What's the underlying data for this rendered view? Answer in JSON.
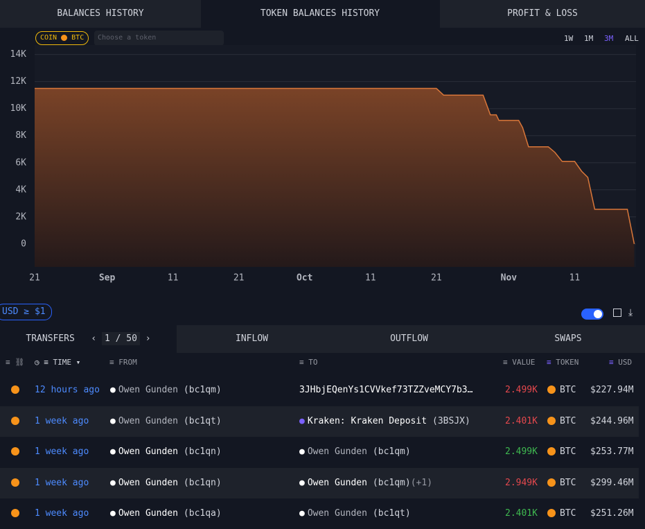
{
  "tabs": [
    "BALANCES HISTORY",
    "TOKEN BALANCES HISTORY",
    "PROFIT & LOSS"
  ],
  "token_filter": {
    "coin": "COIN",
    "token": "BTC",
    "placeholder": "Choose a token"
  },
  "ranges": [
    "1W",
    "1M",
    "3M",
    "ALL"
  ],
  "chart_data": {
    "type": "area",
    "color": "#d9773a",
    "grid": true,
    "x": [
      0,
      61,
      62.1,
      68.1,
      69.2,
      70.1,
      70.5,
      73.5,
      74.1,
      75,
      78,
      79,
      80.1,
      82,
      83.05,
      84,
      85.05,
      90,
      91.05
    ],
    "values": [
      11500,
      11500,
      11000,
      11000,
      9540,
      9540,
      9130,
      9130,
      8600,
      7180,
      7180,
      6770,
      6100,
      6100,
      5380,
      4920,
      2560,
      2560,
      0
    ],
    "xlim": [
      0,
      91
    ],
    "xticks": [
      {
        "value": 0,
        "label": "21"
      },
      {
        "value": 11,
        "label": "Sep"
      },
      {
        "value": 21,
        "label": "11"
      },
      {
        "value": 31,
        "label": "21"
      },
      {
        "value": 41,
        "label": "Oct"
      },
      {
        "value": 51,
        "label": "11"
      },
      {
        "value": 61,
        "label": "21"
      },
      {
        "value": 72,
        "label": "Nov"
      },
      {
        "value": 82,
        "label": "11"
      }
    ],
    "ylim": [
      -1700,
      14700
    ],
    "yticks": [
      0,
      {
        "value": 2000,
        "label": "2K"
      },
      {
        "value": 4000,
        "label": "4K"
      },
      {
        "value": 6000,
        "label": "6K"
      },
      {
        "value": 8000,
        "label": "8K"
      },
      {
        "value": 10000,
        "label": "10K"
      },
      {
        "value": 12000,
        "label": "12K"
      },
      {
        "value": 14000,
        "label": "14K"
      }
    ]
  },
  "filter_chip": "USD ≥ $1",
  "subtabs": {
    "transfers": "TRANSFERS",
    "page": "1 / 50",
    "inflow": "INFLOW",
    "outflow": "OUTFLOW",
    "swaps": "SWAPS"
  },
  "table": {
    "headers": [
      "TIME",
      "FROM",
      "TO",
      "VALUE",
      "TOKEN",
      "USD"
    ],
    "rows": [
      {
        "time": "12 hours ago",
        "from_name": "Owen Gunden",
        "from_addr": "(bc1qm)",
        "to_name": "3JHbjEQenYs1CVVkef73TZZveMCY7b3…",
        "to_addr": "",
        "extra": "",
        "value": "2.499K",
        "value_color": "#e5484d",
        "token": "BTC",
        "usd": "$227.94M"
      },
      {
        "time": "1 week ago",
        "from_name": "Owen Gunden",
        "from_addr": "(bc1qt)",
        "to_name": "Kraken: Kraken Deposit",
        "to_addr": "(3BSJX)",
        "extra": "",
        "value": "2.401K",
        "value_color": "#e5484d",
        "token": "BTC",
        "usd": "$244.96M"
      },
      {
        "time": "1 week ago",
        "from_name": "Owen Gunden",
        "from_addr": "(bc1qn)",
        "to_name": "Owen Gunden",
        "to_addr": "(bc1qm)",
        "extra": "",
        "value": "2.499K",
        "value_color": "#3fb950",
        "token": "BTC",
        "usd": "$253.77M"
      },
      {
        "time": "1 week ago",
        "from_name": "Owen Gunden",
        "from_addr": "(bc1qn)",
        "to_name": "Owen Gunden",
        "to_addr": "(bc1qm)",
        "extra": "(+1)",
        "value": "2.949K",
        "value_color": "#e5484d",
        "token": "BTC",
        "usd": "$299.46M"
      },
      {
        "time": "1 week ago",
        "from_name": "Owen Gunden",
        "from_addr": "(bc1qa)",
        "to_name": "Owen Gunden",
        "to_addr": "(bc1qt)",
        "extra": "",
        "value": "2.401K",
        "value_color": "#3fb950",
        "token": "BTC",
        "usd": "$251.26M"
      }
    ]
  }
}
